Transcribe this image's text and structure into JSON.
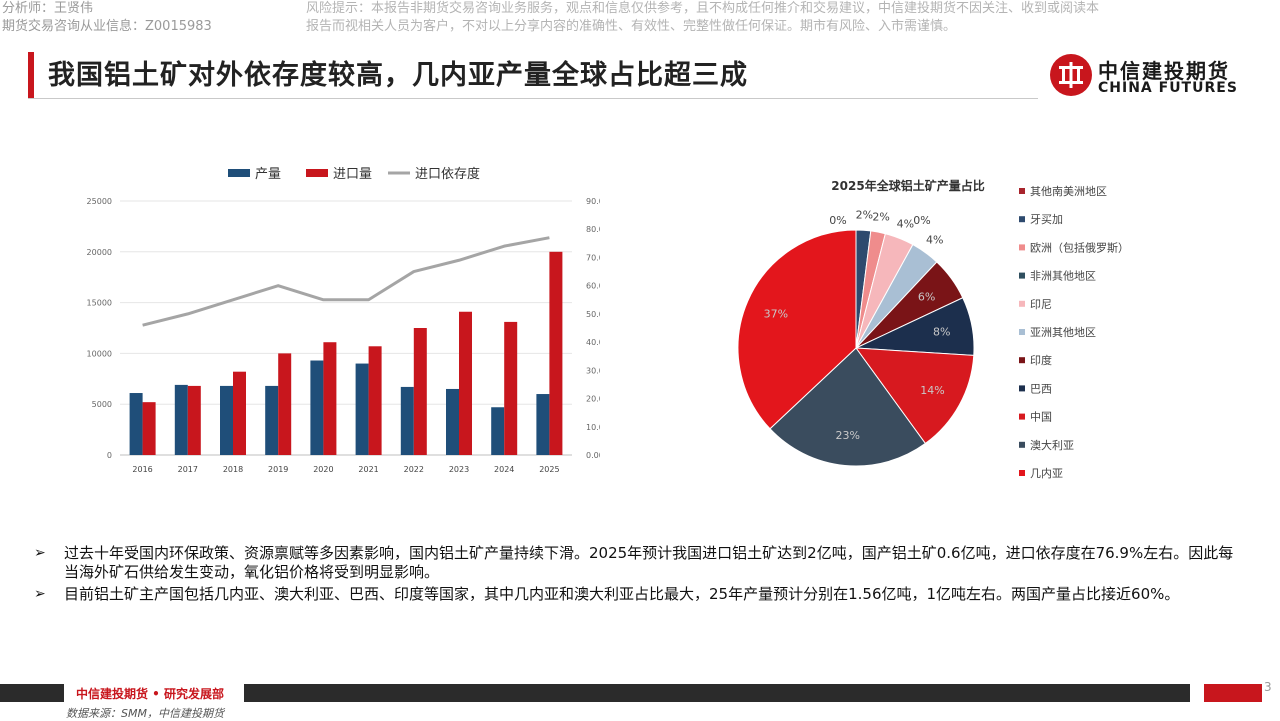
{
  "header": {
    "analyst_line1": "分析师：王贤伟",
    "analyst_line2": "期货交易咨询从业信息：Z0015983",
    "risk_line1": "风险提示：本报告非期货交易咨询业务服务，观点和信息仅供参考，且不构成任何推介和交易建议，中信建投期货不因关注、收到或阅读本",
    "risk_line2": "报告而视相关人员为客户，不对以上分享内容的准确性、有效性、完整性做任何保证。期市有风险、入市需谨慎。"
  },
  "title": "我国铝土矿对外依存度较高，几内亚产量全球占比超三成",
  "logo": {
    "cn": "中信建投期货",
    "en": "CHINA FUTURES"
  },
  "colors": {
    "red": "#c8161d",
    "navy": "#1f4e79",
    "gray": "#a5a5a5"
  },
  "chart_data": [
    {
      "type": "bar",
      "title": "",
      "legend": [
        "产量",
        "进口量",
        "进口依存度"
      ],
      "categories": [
        "2016",
        "2017",
        "2018",
        "2019",
        "2020",
        "2021",
        "2022",
        "2023",
        "2024",
        "2025"
      ],
      "series": [
        {
          "name": "产量",
          "kind": "bar",
          "axis": "left",
          "values": [
            6100,
            6900,
            6800,
            6800,
            9300,
            9000,
            6700,
            6500,
            4700,
            6000
          ]
        },
        {
          "name": "进口量",
          "kind": "bar",
          "axis": "left",
          "values": [
            5200,
            6800,
            8200,
            10000,
            11100,
            10700,
            12500,
            14100,
            13100,
            20000
          ]
        },
        {
          "name": "进口依存度",
          "kind": "line",
          "axis": "right",
          "values": [
            46,
            50,
            55,
            60,
            55,
            55,
            65,
            69,
            74,
            77
          ]
        }
      ],
      "ylim_left": [
        0,
        25000
      ],
      "yticks_left": [
        "0",
        "5000",
        "10000",
        "15000",
        "20000",
        "25000"
      ],
      "ylim_right": [
        0,
        90
      ],
      "yticks_right": [
        "0.00%",
        "10.00%",
        "20.00%",
        "30.00%",
        "40.00%",
        "50.00%",
        "60.00%",
        "70.00%",
        "80.00%",
        "90.00%"
      ],
      "legend_position": "top"
    },
    {
      "type": "pie",
      "title": "2025年全球铝土矿产量占比",
      "slices": [
        {
          "label": "其他南美洲地区",
          "value": 0,
          "pct_label": "0%",
          "color": "#a8242c"
        },
        {
          "label": "牙买加",
          "value": 2,
          "pct_label": "2%",
          "color": "#2e4a6e"
        },
        {
          "label": "欧洲（包括俄罗斯）",
          "value": 2,
          "pct_label": "2%",
          "color": "#ef8c8c"
        },
        {
          "label": "非洲其他地区",
          "value": 0,
          "pct_label": "0%",
          "color": "#2f4f5f"
        },
        {
          "label": "印尼",
          "value": 4,
          "pct_label": "4%",
          "color": "#f6b7bb"
        },
        {
          "label": "亚洲其他地区",
          "value": 4,
          "pct_label": "4%",
          "color": "#a9bfd4"
        },
        {
          "label": "印度",
          "value": 6,
          "pct_label": "6%",
          "color": "#7a1417"
        },
        {
          "label": "巴西",
          "value": 8,
          "pct_label": "8%",
          "color": "#1c2f4d"
        },
        {
          "label": "中国",
          "value": 14,
          "pct_label": "14%",
          "color": "#d7191f"
        },
        {
          "label": "澳大利亚",
          "value": 23,
          "pct_label": "23%",
          "color": "#3a4c5e"
        },
        {
          "label": "几内亚",
          "value": 37,
          "pct_label": "37%",
          "color": "#e3161c"
        }
      ],
      "legend_position": "right"
    }
  ],
  "bullets": [
    "过去十年受国内环保政策、资源禀赋等多因素影响，国内铝土矿产量持续下滑。2025年预计我国进口铝土矿达到2亿吨，国产铝土矿0.6亿吨，进口依存度在76.9%左右。因此每当海外矿石供给发生变动，氧化铝价格将受到明显影响。",
    "目前铝土矿主产国包括几内亚、澳大利亚、巴西、印度等国家，其中几内亚和澳大利亚占比最大，25年产量预计分别在1.56亿吨，1亿吨左右。两国产量占比接近60%。"
  ],
  "footer": {
    "dept": "中信建投期货 • 研究发展部",
    "page": "3",
    "source": "数据来源：SMM，中信建投期货"
  }
}
